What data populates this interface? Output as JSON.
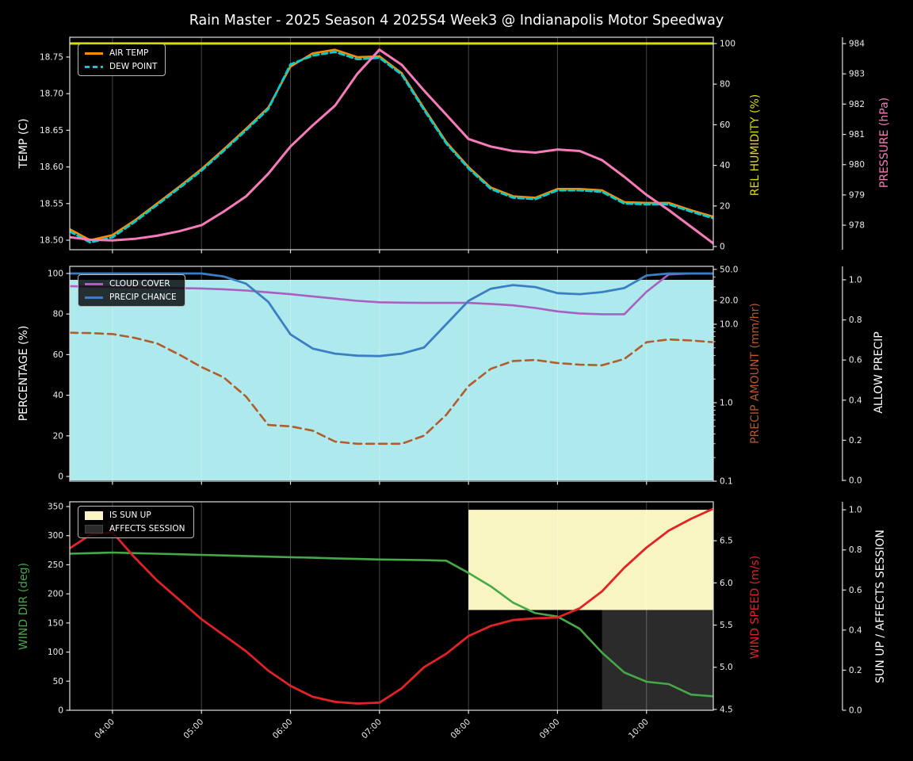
{
  "title": "Rain Master - 2025 Season 4 2025S4 Week3 @ Indianapolis Motor Speedway",
  "colors": {
    "background": "#000000",
    "text": "#ffffff",
    "spine": "#e0e0e0",
    "grid": "rgba(255,255,255,0.28)"
  },
  "legends": [
    {
      "items": [
        {
          "label": "AIR TEMP",
          "swatch": "line",
          "color": "#ff8c00"
        },
        {
          "label": "DEW POINT",
          "swatch": "dashed-line",
          "color": "#00ced1"
        }
      ]
    },
    {
      "items": [
        {
          "label": "CLOUD COVER",
          "swatch": "line",
          "color": "#a95fc0"
        },
        {
          "label": "PRECIP CHANCE",
          "swatch": "line",
          "color": "#3b7fc2"
        }
      ]
    },
    {
      "items": [
        {
          "label": "IS SUN UP",
          "swatch": "patch",
          "color": "#f8f5c2"
        },
        {
          "label": "AFFECTS SESSION",
          "swatch": "patch",
          "color": "#2b2b2b"
        }
      ]
    }
  ],
  "chart_data": [
    {
      "type": "line",
      "panel": "temperature-humidity-pressure",
      "x": [
        3.52,
        3.75,
        4.0,
        4.25,
        4.5,
        4.75,
        5.0,
        5.25,
        5.5,
        5.75,
        6.0,
        6.25,
        6.5,
        6.75,
        7.0,
        7.25,
        7.5,
        7.75,
        8.0,
        8.25,
        8.5,
        8.75,
        9.0,
        9.25,
        9.5,
        9.75,
        10.0,
        10.25,
        10.5,
        10.75
      ],
      "x_ticks": [
        {
          "v": 4,
          "label": "04:00"
        },
        {
          "v": 5,
          "label": "05:00"
        },
        {
          "v": 6,
          "label": "06:00"
        },
        {
          "v": 7,
          "label": "07:00"
        },
        {
          "v": 8,
          "label": "08:00"
        },
        {
          "v": 9,
          "label": "09:00"
        },
        {
          "v": 10,
          "label": "10:00"
        }
      ],
      "x_tick_labels": false,
      "axes": [
        {
          "id": "temp",
          "side": "left",
          "label": "TEMP (C)",
          "color": "#ffffff",
          "range": [
            18.487,
            18.777
          ],
          "ticks": [
            [
              18.5,
              "18.50"
            ],
            [
              18.55,
              "18.55"
            ],
            [
              18.6,
              "18.60"
            ],
            [
              18.65,
              "18.65"
            ],
            [
              18.7,
              "18.70"
            ],
            [
              18.75,
              "18.75"
            ]
          ]
        },
        {
          "id": "hum",
          "side": "right1",
          "label": "REL HUMIDITY (%)",
          "color": "#dcdc00",
          "range": [
            -1.56,
            103.1
          ],
          "ticks": [
            [
              0,
              "0"
            ],
            [
              20,
              "20"
            ],
            [
              40,
              "40"
            ],
            [
              60,
              "60"
            ],
            [
              80,
              "80"
            ],
            [
              100,
              "100"
            ]
          ]
        },
        {
          "id": "press",
          "side": "right2",
          "label": "PRESSURE (hPa)",
          "color": "#f77bbb",
          "range": [
            977.19,
            984.21
          ],
          "ticks": [
            [
              978,
              "978"
            ],
            [
              979,
              "979"
            ],
            [
              980,
              "980"
            ],
            [
              981,
              "981"
            ],
            [
              982,
              "982"
            ],
            [
              983,
              "983"
            ],
            [
              984,
              "984"
            ]
          ]
        }
      ],
      "series": [
        {
          "name": "AIR TEMP",
          "axis": "temp",
          "color": "#ff8c00",
          "width": 2.6,
          "values": [
            18.515,
            18.5,
            18.507,
            18.527,
            18.55,
            18.573,
            18.597,
            18.624,
            18.652,
            18.681,
            18.737,
            18.755,
            18.76,
            18.75,
            18.751,
            18.728,
            18.68,
            18.634,
            18.6,
            18.572,
            18.56,
            18.558,
            18.57,
            18.57,
            18.568,
            18.552,
            18.551,
            18.551,
            18.541,
            18.532
          ]
        },
        {
          "name": "DEW POINT",
          "axis": "temp",
          "color": "#00ced1",
          "width": 2.8,
          "dash": "7 4",
          "values": [
            18.512,
            18.497,
            18.504,
            18.525,
            18.548,
            18.571,
            18.595,
            18.622,
            18.65,
            18.679,
            18.74,
            18.752,
            18.757,
            18.747,
            18.749,
            18.726,
            18.678,
            18.632,
            18.598,
            18.57,
            18.558,
            18.556,
            18.568,
            18.568,
            18.566,
            18.55,
            18.549,
            18.549,
            18.539,
            18.53
          ]
        },
        {
          "name": "REL HUMIDITY",
          "axis": "hum",
          "color": "#dcdc00",
          "width": 3,
          "values": [
            100,
            100,
            100,
            100,
            100,
            100,
            100,
            100,
            100,
            100,
            100,
            100,
            100,
            100,
            100,
            100,
            100,
            100,
            100,
            100,
            100,
            100,
            100,
            100,
            100,
            100,
            100,
            100,
            100,
            100
          ]
        },
        {
          "name": "PRESSURE",
          "axis": "press",
          "color": "#f77bbb",
          "width": 3,
          "values": [
            977.6,
            977.52,
            977.5,
            977.55,
            977.65,
            977.8,
            978.0,
            978.45,
            978.95,
            979.7,
            980.6,
            981.3,
            981.95,
            983.0,
            983.8,
            983.3,
            982.45,
            981.65,
            980.85,
            980.6,
            980.45,
            980.4,
            980.5,
            980.45,
            980.15,
            979.6,
            979.0,
            978.5,
            977.95,
            977.4
          ]
        }
      ],
      "fills": []
    },
    {
      "type": "line",
      "panel": "precipitation",
      "x": [
        3.52,
        3.75,
        4.0,
        4.25,
        4.5,
        4.75,
        5.0,
        5.25,
        5.5,
        5.75,
        6.0,
        6.25,
        6.5,
        6.75,
        7.0,
        7.25,
        7.5,
        7.75,
        8.0,
        8.25,
        8.5,
        8.75,
        9.0,
        9.25,
        9.5,
        9.75,
        10.0,
        10.25,
        10.5,
        10.75
      ],
      "x_ticks": [
        {
          "v": 4,
          "label": "04:00"
        },
        {
          "v": 5,
          "label": "05:00"
        },
        {
          "v": 6,
          "label": "06:00"
        },
        {
          "v": 7,
          "label": "07:00"
        },
        {
          "v": 8,
          "label": "08:00"
        },
        {
          "v": 9,
          "label": "09:00"
        },
        {
          "v": 10,
          "label": "10:00"
        }
      ],
      "x_tick_labels": false,
      "axes": [
        {
          "id": "pct",
          "side": "left",
          "label": "PERCENTAGE (%)",
          "color": "#ffffff",
          "range": [
            -2.34,
            103.5
          ],
          "ticks": [
            [
              0,
              "0"
            ],
            [
              20,
              "20"
            ],
            [
              40,
              "40"
            ],
            [
              60,
              "60"
            ],
            [
              80,
              "80"
            ],
            [
              100,
              "100"
            ]
          ]
        },
        {
          "id": "amt",
          "side": "right1",
          "label": "PRECIP AMOUNT (mm/hr)",
          "color": "#b35b2a",
          "log": true,
          "range": [
            0.1,
            54.6
          ],
          "ticks": [
            [
              0.1,
              "0.1"
            ],
            [
              1.0,
              "1.0"
            ],
            [
              10.0,
              "10.0"
            ],
            [
              20.0,
              "20.0"
            ],
            [
              50.0,
              "50.0"
            ]
          ]
        },
        {
          "id": "allow",
          "side": "right2",
          "label": "ALLOW PRECIP",
          "color": "#ffffff",
          "range": [
            -0.004,
            1.067
          ],
          "ticks": [
            [
              0.0,
              "0.0"
            ],
            [
              0.2,
              "0.2"
            ],
            [
              0.4,
              "0.4"
            ],
            [
              0.6,
              "0.6"
            ],
            [
              0.8,
              "0.8"
            ],
            [
              1.0,
              "1.0"
            ]
          ]
        }
      ],
      "series": [
        {
          "name": "CLOUD COVER",
          "axis": "pct",
          "color": "#a95fc0",
          "width": 2.6,
          "values": [
            93.7,
            93.5,
            93.3,
            93.2,
            93.0,
            92.8,
            92.6,
            92.2,
            91.6,
            90.7,
            89.8,
            88.7,
            87.6,
            86.5,
            85.8,
            85.6,
            85.5,
            85.5,
            85.5,
            85.0,
            84.3,
            83.0,
            81.3,
            80.3,
            79.9,
            79.9,
            91.0,
            99.5,
            100,
            100
          ]
        },
        {
          "name": "PRECIP CHANCE",
          "axis": "pct",
          "color": "#3b7fc2",
          "width": 2.8,
          "values": [
            100,
            100,
            100,
            100,
            100,
            100,
            100,
            98.5,
            95,
            86,
            70,
            63,
            60.5,
            59.5,
            59.3,
            60.5,
            63.5,
            75,
            86.5,
            92.5,
            94.3,
            93.3,
            90.3,
            89.8,
            90.8,
            92.8,
            99,
            100,
            100,
            100
          ]
        },
        {
          "name": "PRECIP AMOUNT",
          "axis": "amt",
          "color": "#b35b2a",
          "width": 2.6,
          "dash": "10 6",
          "values": [
            7.8,
            7.7,
            7.5,
            6.7,
            5.7,
            4.1,
            2.85,
            2.1,
            1.2,
            0.52,
            0.5,
            0.44,
            0.32,
            0.3,
            0.3,
            0.3,
            0.38,
            0.7,
            1.63,
            2.7,
            3.4,
            3.5,
            3.2,
            3.05,
            3.0,
            3.6,
            5.9,
            6.4,
            6.2,
            5.9
          ]
        }
      ],
      "fills": [
        {
          "name": "ALLOW PRECIP",
          "axis": "allow",
          "x0": 3.52,
          "x1": 10.75,
          "y0": 0.0,
          "y1": 1.0,
          "color": "#aeeaed"
        }
      ]
    },
    {
      "type": "line",
      "panel": "wind-sun",
      "x": [
        3.52,
        3.75,
        4.0,
        4.25,
        4.5,
        4.75,
        5.0,
        5.25,
        5.5,
        5.75,
        6.0,
        6.25,
        6.5,
        6.75,
        7.0,
        7.25,
        7.5,
        7.75,
        8.0,
        8.25,
        8.5,
        8.75,
        9.0,
        9.25,
        9.5,
        9.75,
        10.0,
        10.25,
        10.5,
        10.75
      ],
      "x_ticks": [
        {
          "v": 4,
          "label": "04:00"
        },
        {
          "v": 5,
          "label": "05:00"
        },
        {
          "v": 6,
          "label": "06:00"
        },
        {
          "v": 7,
          "label": "07:00"
        },
        {
          "v": 8,
          "label": "08:00"
        },
        {
          "v": 9,
          "label": "09:00"
        },
        {
          "v": 10,
          "label": "10:00"
        }
      ],
      "x_tick_labels": true,
      "axes": [
        {
          "id": "deg",
          "side": "left",
          "label": "WIND DIR (deg)",
          "color": "#46a848",
          "range": [
            0,
            358.2
          ],
          "ticks": [
            [
              0,
              "0"
            ],
            [
              50,
              "50"
            ],
            [
              100,
              "100"
            ],
            [
              150,
              "150"
            ],
            [
              200,
              "200"
            ],
            [
              250,
              "250"
            ],
            [
              300,
              "300"
            ],
            [
              350,
              "350"
            ]
          ]
        },
        {
          "id": "spd",
          "side": "right1",
          "label": "WIND SPEED (m/s)",
          "color": "#e32226",
          "range": [
            4.49,
            6.962
          ],
          "ticks": [
            [
              4.5,
              "4.5"
            ],
            [
              5.0,
              "5.0"
            ],
            [
              5.5,
              "5.5"
            ],
            [
              6.0,
              "6.0"
            ],
            [
              6.5,
              "6.5"
            ]
          ]
        },
        {
          "id": "sun",
          "side": "right2",
          "label": "SUN UP / AFFECTS SESSION",
          "color": "#ffffff",
          "range": [
            0,
            1.04
          ],
          "ticks": [
            [
              0.0,
              "0.0"
            ],
            [
              0.2,
              "0.2"
            ],
            [
              0.4,
              "0.4"
            ],
            [
              0.6,
              "0.6"
            ],
            [
              0.8,
              "0.8"
            ],
            [
              1.0,
              "1.0"
            ]
          ]
        }
      ],
      "series": [
        {
          "name": "WIND DIR",
          "axis": "deg",
          "color": "#46a848",
          "width": 2.6,
          "values": [
            269,
            270,
            271,
            270,
            269,
            268,
            267,
            266,
            265,
            264,
            263,
            262,
            261,
            260,
            259,
            258.5,
            258,
            257,
            236,
            213,
            185,
            167,
            161,
            140,
            99,
            65,
            49,
            45,
            27,
            24
          ]
        },
        {
          "name": "WIND SPEED",
          "axis": "spd",
          "color": "#e32226",
          "width": 2.8,
          "values": [
            6.41,
            6.57,
            6.6,
            6.3,
            6.03,
            5.8,
            5.57,
            5.38,
            5.19,
            4.96,
            4.78,
            4.65,
            4.59,
            4.57,
            4.58,
            4.75,
            5.0,
            5.16,
            5.37,
            5.49,
            5.56,
            5.58,
            5.59,
            5.7,
            5.9,
            6.18,
            6.42,
            6.62,
            6.76,
            6.88
          ]
        }
      ],
      "fills": [
        {
          "name": "IS SUN UP",
          "axis": "sun",
          "x0": 8.0,
          "x1": 10.75,
          "y0": 0.5,
          "y1": 1.0,
          "color": "#f8f5c2"
        },
        {
          "name": "AFFECTS SESSION",
          "axis": "sun",
          "x0": 9.5,
          "x1": 10.75,
          "y0": 0.0,
          "y1": 0.5,
          "color": "#2b2b2b"
        }
      ]
    }
  ]
}
